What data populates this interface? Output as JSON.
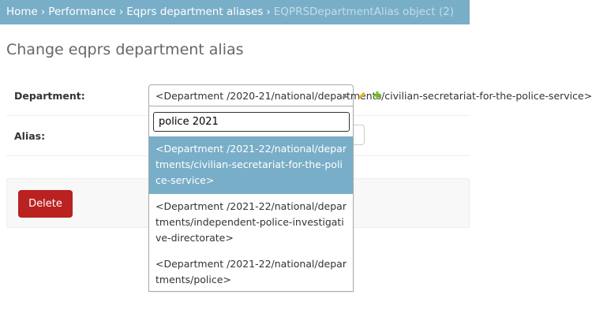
{
  "breadcrumbs": {
    "home": "Home",
    "performance": "Performance",
    "model": "Eqprs department aliases",
    "current": "EQPRSDepartmentAlias object (2)",
    "separator": "›"
  },
  "page": {
    "title": "Change eqprs department alias"
  },
  "form": {
    "department_label": "Department:",
    "department_value": "<Department /2020-21/national/departments/civilian-secretariat-for-the-police-service>",
    "alias_label": "Alias:"
  },
  "dropdown": {
    "search_value": "police 2021",
    "options": [
      "<Department /2021-22/national/departments/civilian-secretariat-for-the-police-service>",
      "<Department /2021-22/national/departments/independent-police-investigative-directorate>",
      "<Department /2021-22/national/departments/police>"
    ]
  },
  "actions": {
    "delete_label": "Delete"
  },
  "icons": {
    "edit": "pencil-icon",
    "add": "plus-icon",
    "dropdown_arrow": "caret-up-icon"
  },
  "colors": {
    "breadcrumb_bg": "#79aec8",
    "highlight": "#79aec8",
    "delete": "#ba2121",
    "add": "#70bf2b",
    "edit": "#efb80b"
  }
}
